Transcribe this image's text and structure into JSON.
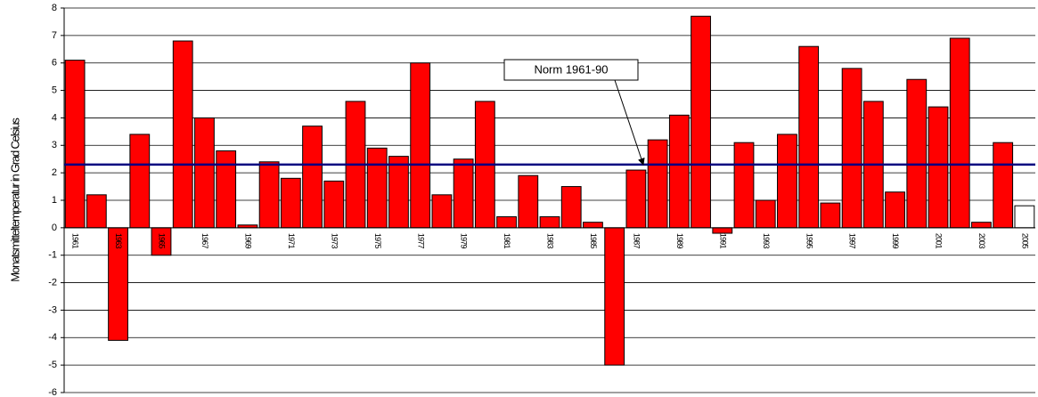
{
  "chart_data": {
    "type": "bar",
    "y_label": "Monatsmitteltemperatur in Grad Celsius",
    "categories": [
      "1961",
      null,
      "1963",
      null,
      "1965",
      null,
      "1967",
      null,
      "1969",
      null,
      "1971",
      null,
      "1973",
      null,
      "1975",
      null,
      "1977",
      null,
      "1979",
      null,
      "1981",
      null,
      "1983",
      null,
      "1985",
      null,
      "1987",
      null,
      "1989",
      null,
      "1991",
      null,
      "1993",
      null,
      "1995",
      null,
      "1997",
      null,
      "1999",
      null,
      "2001",
      null,
      "2003",
      null,
      "2005"
    ],
    "values": [
      6.1,
      1.2,
      -4.1,
      3.4,
      -1.0,
      6.8,
      4.0,
      2.8,
      0.1,
      2.4,
      1.8,
      3.7,
      1.7,
      4.6,
      2.9,
      2.6,
      6.0,
      1.2,
      2.5,
      4.6,
      0.4,
      1.9,
      0.4,
      1.5,
      0.2,
      -5.0,
      2.1,
      3.2,
      4.1,
      7.7,
      -0.2,
      3.1,
      1.0,
      3.4,
      6.6,
      0.9,
      5.8,
      4.6,
      1.3,
      5.4,
      4.4,
      6.9,
      0.2,
      3.1,
      0.8
    ],
    "bar_colors": [
      "#ff0000",
      "#ff0000",
      "#ff0000",
      "#ff0000",
      "#ff0000",
      "#ff0000",
      "#ff0000",
      "#ff0000",
      "#ff0000",
      "#ff0000",
      "#ff0000",
      "#ff0000",
      "#ff0000",
      "#ff0000",
      "#ff0000",
      "#ff0000",
      "#ff0000",
      "#ff0000",
      "#ff0000",
      "#ff0000",
      "#ff0000",
      "#ff0000",
      "#ff0000",
      "#ff0000",
      "#ff0000",
      "#ff0000",
      "#ff0000",
      "#ff0000",
      "#ff0000",
      "#ff0000",
      "#ff0000",
      "#ff0000",
      "#ff0000",
      "#ff0000",
      "#ff0000",
      "#ff0000",
      "#ff0000",
      "#ff0000",
      "#ff0000",
      "#ff0000",
      "#ff0000",
      "#ff0000",
      "#ff0000",
      "#ff0000",
      "#ffffff"
    ],
    "ylim": [
      -6,
      8
    ],
    "yticks": [
      -6,
      -5,
      -4,
      -3,
      -2,
      -1,
      0,
      1,
      2,
      3,
      4,
      5,
      6,
      7,
      8
    ],
    "grid": true,
    "norm": {
      "label": "Norm 1961-90",
      "value": 2.3,
      "color": "#000080"
    }
  }
}
